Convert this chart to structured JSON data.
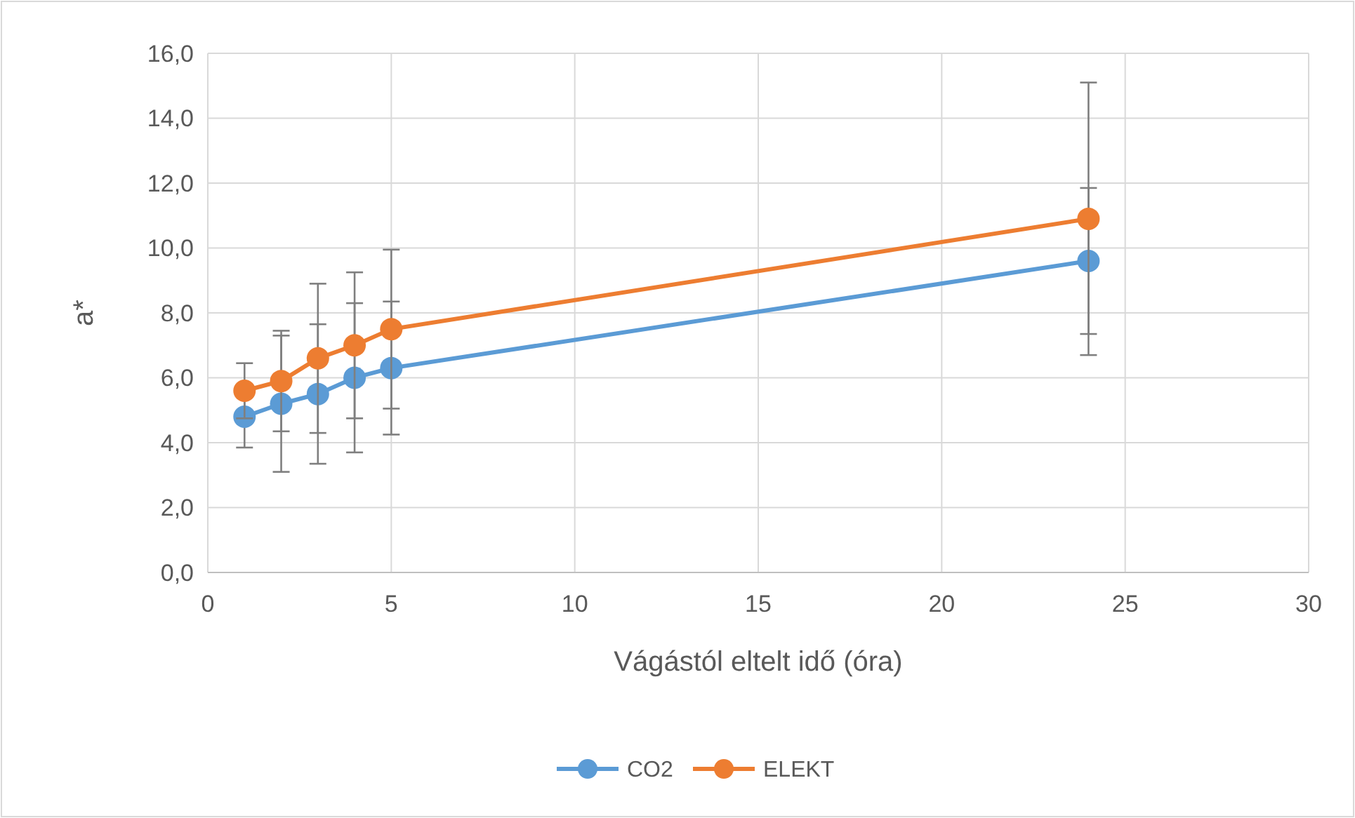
{
  "chart_data": {
    "type": "line",
    "xlabel": "Vágástól eltelt idő (óra)",
    "ylabel": "a*",
    "x": [
      1,
      2,
      3,
      4,
      5,
      24
    ],
    "series": [
      {
        "name": "CO2",
        "color": "#5b9bd5",
        "values": [
          4.8,
          5.2,
          5.5,
          6.0,
          6.3,
          9.6
        ],
        "errors": [
          0.95,
          2.1,
          2.15,
          2.3,
          2.05,
          2.25
        ]
      },
      {
        "name": "ELEKT",
        "color": "#ed7d31",
        "values": [
          5.6,
          5.9,
          6.6,
          7.0,
          7.5,
          10.9
        ],
        "errors": [
          0.85,
          1.55,
          2.3,
          2.25,
          2.45,
          4.2
        ]
      }
    ],
    "xlim": [
      0,
      30
    ],
    "xticks": [
      0,
      5,
      10,
      15,
      20,
      25,
      30
    ],
    "ylim": [
      0,
      16
    ],
    "yticks": [
      {
        "value": 0,
        "label": "0,0"
      },
      {
        "value": 2,
        "label": "2,0"
      },
      {
        "value": 4,
        "label": "4,0"
      },
      {
        "value": 6,
        "label": "6,0"
      },
      {
        "value": 8,
        "label": "8,0"
      },
      {
        "value": 10,
        "label": "10,0"
      },
      {
        "value": 12,
        "label": "12,0"
      },
      {
        "value": 14,
        "label": "14,0"
      },
      {
        "value": 16,
        "label": "16,0"
      }
    ],
    "grid": true,
    "legend": "bottom",
    "marker": "circle",
    "line_style": "solid"
  }
}
